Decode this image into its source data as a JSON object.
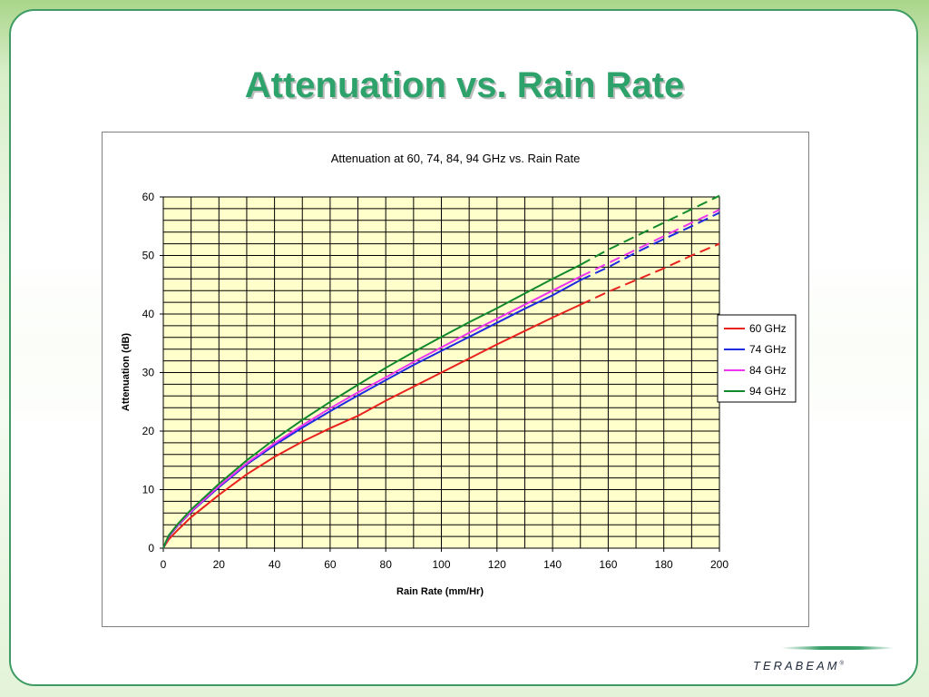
{
  "slide": {
    "title": "Attenuation vs. Rain Rate",
    "brand": "TERABEAM",
    "brand_mark": "®"
  },
  "colors": {
    "title": "#2da36b",
    "plot_background": "#ffffcc",
    "grid": "#000000",
    "series": [
      "#e8231e",
      "#1f2be0",
      "#ee35ee",
      "#118a2b"
    ]
  },
  "chart_data": {
    "type": "line",
    "title": "Attenuation at 60, 74, 84, 94 GHz vs. Rain Rate",
    "xlabel": "Rain Rate (mm/Hr)",
    "ylabel": "Attenuation (dB)",
    "xlim": [
      0,
      200
    ],
    "ylim": [
      0,
      60
    ],
    "x_ticks": [
      0,
      20,
      40,
      60,
      80,
      100,
      120,
      140,
      160,
      180,
      200
    ],
    "y_ticks": [
      0,
      10,
      20,
      30,
      40,
      50,
      60
    ],
    "grid": "on",
    "legend_position": "right",
    "solid_until_x": 150,
    "x": [
      0,
      1,
      2,
      5,
      10,
      20,
      30,
      40,
      50,
      60,
      70,
      80,
      90,
      100,
      110,
      120,
      130,
      140,
      150,
      160,
      170,
      180,
      190,
      200
    ],
    "series": [
      {
        "name": "60 GHz",
        "values": [
          0,
          0.8,
          1.5,
          3.0,
          5.3,
          9.1,
          12.6,
          15.6,
          18.2,
          20.5,
          22.6,
          25.2,
          27.6,
          30.0,
          32.4,
          34.8,
          37.1,
          39.4,
          41.6,
          43.8,
          45.8,
          47.8,
          50.0,
          52.0
        ]
      },
      {
        "name": "74 GHz",
        "values": [
          0,
          1.1,
          2.0,
          3.7,
          6.2,
          10.4,
          14.3,
          17.6,
          20.6,
          23.4,
          26.1,
          28.7,
          31.3,
          33.7,
          36.1,
          38.5,
          40.9,
          43.2,
          45.8,
          48.0,
          50.5,
          52.8,
          55.0,
          57.3
        ]
      },
      {
        "name": "84 GHz",
        "values": [
          0,
          1.1,
          2.1,
          3.8,
          6.3,
          10.6,
          14.5,
          17.9,
          21.0,
          23.9,
          26.6,
          29.2,
          31.8,
          34.3,
          36.8,
          39.2,
          41.6,
          44.0,
          46.4,
          48.7,
          51.0,
          53.3,
          55.6,
          57.8
        ]
      },
      {
        "name": "94 GHz",
        "values": [
          0,
          1.2,
          2.2,
          4.0,
          6.6,
          11.0,
          15.0,
          18.6,
          21.9,
          25.0,
          27.9,
          30.8,
          33.5,
          36.1,
          38.6,
          41.0,
          43.5,
          46.0,
          48.4,
          51.0,
          53.3,
          55.6,
          57.9,
          60.2
        ]
      }
    ]
  }
}
